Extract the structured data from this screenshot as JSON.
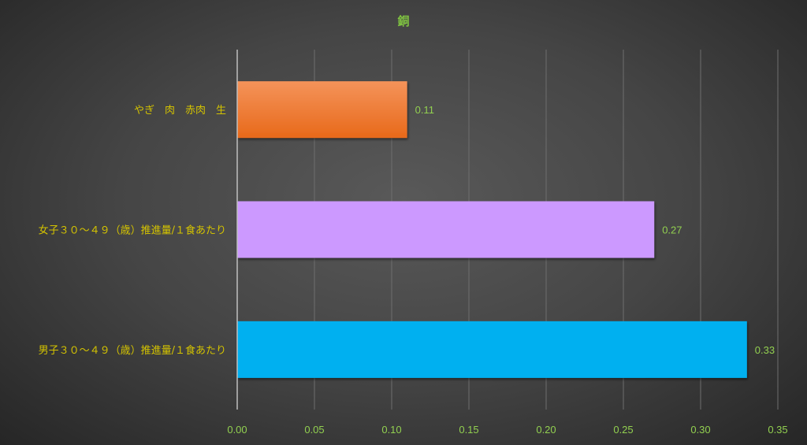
{
  "chart_data": {
    "type": "bar",
    "orientation": "horizontal",
    "title": "銅",
    "categories": [
      "やぎ　肉　赤肉　生",
      "女子３０～４９（歳）推進量/１食あたり",
      "男子３０～４９（歳）推進量/１食あたり"
    ],
    "values": [
      0.11,
      0.27,
      0.33
    ],
    "data_labels": [
      "0.11",
      "0.27",
      "0.33"
    ],
    "bar_colors": [
      "#ee7a2b",
      "#cc99ff",
      "#00b0f0"
    ],
    "xlim": [
      0,
      0.35
    ],
    "x_ticks": [
      "0.00",
      "0.05",
      "0.10",
      "0.15",
      "0.20",
      "0.25",
      "0.30",
      "0.35"
    ],
    "grid": true,
    "legend": "none",
    "colors": {
      "title": "#7fc241",
      "tick_labels": "#92d050",
      "category_labels": "#d4c300",
      "data_labels": "#92d050"
    }
  }
}
